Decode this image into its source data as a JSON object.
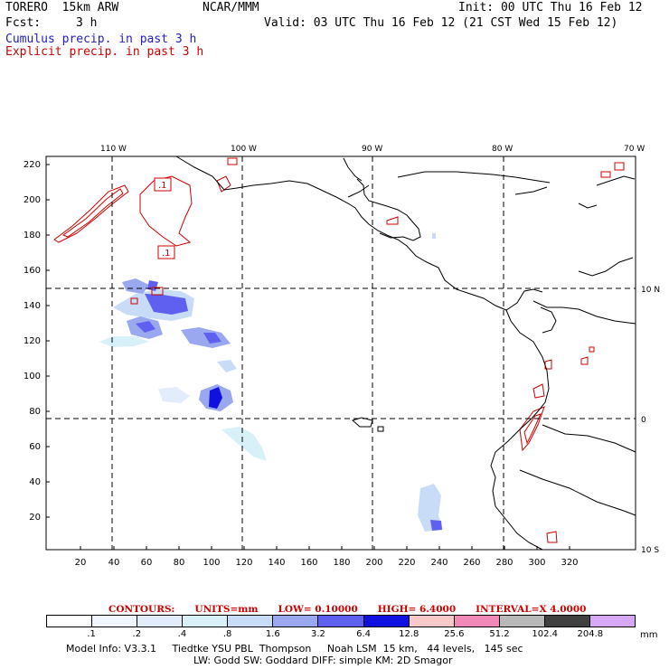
{
  "header": {
    "model": "TORERO  15km ARW",
    "center": "NCAR/MMM",
    "init": "Init: 00 UTC Thu 16 Feb 12",
    "fcst_label": "Fcst:",
    "fcst_value": "3 h",
    "valid": "Valid: 03 UTC Thu 16 Feb 12 (21 CST Wed 15 Feb 12)"
  },
  "legend": {
    "cumulus": "Cumulus precip. in past 3 h",
    "explicit": "Explicit precip. in past 3 h"
  },
  "map": {
    "lon_labels": [
      "110 W",
      "100 W",
      "90 W",
      "80 W",
      "70 W"
    ],
    "lat_labels": [
      "10 N",
      "0",
      "10 S"
    ],
    "x_ticks": [
      "20",
      "40",
      "60",
      "80",
      "100",
      "120",
      "140",
      "160",
      "180",
      "200",
      "220",
      "240",
      "260",
      "280",
      "300",
      "320"
    ],
    "y_ticks": [
      "20",
      "40",
      "60",
      "80",
      "100",
      "120",
      "140",
      "160",
      "180",
      "200",
      "220"
    ],
    "contour_labels": [
      ".1",
      ".1"
    ]
  },
  "contour_info": {
    "contours": "CONTOURS:",
    "units": "UNITS=mm",
    "low": "LOW= 0.10000",
    "high": "HIGH= 6.4000",
    "interval": "INTERVAL=X 4.0000"
  },
  "colorbar": {
    "labels": [
      ".1",
      ".2",
      ".4",
      ".8",
      "1.6",
      "3.2",
      "6.4",
      "12.8",
      "25.6",
      "51.2",
      "102.4",
      "204.8"
    ],
    "colors": [
      "#ffffff",
      "#f0f5ff",
      "#e2ecfb",
      "#d8f0f8",
      "#c8dcf8",
      "#9aa8f0",
      "#6060f0",
      "#1010e0",
      "#f8c8c8",
      "#f088b8",
      "#b8b8b8",
      "#404040",
      "#d8a8f8"
    ],
    "unit": "mm"
  },
  "footer": {
    "line1": "Model Info: V3.3.1     Tiedtke YSU PBL  Thompson     Noah LSM  15 km,   44 levels,   145 sec",
    "line2": "LW: Godd SW: Goddard DIFF: simple KM: 2D Smagor"
  }
}
